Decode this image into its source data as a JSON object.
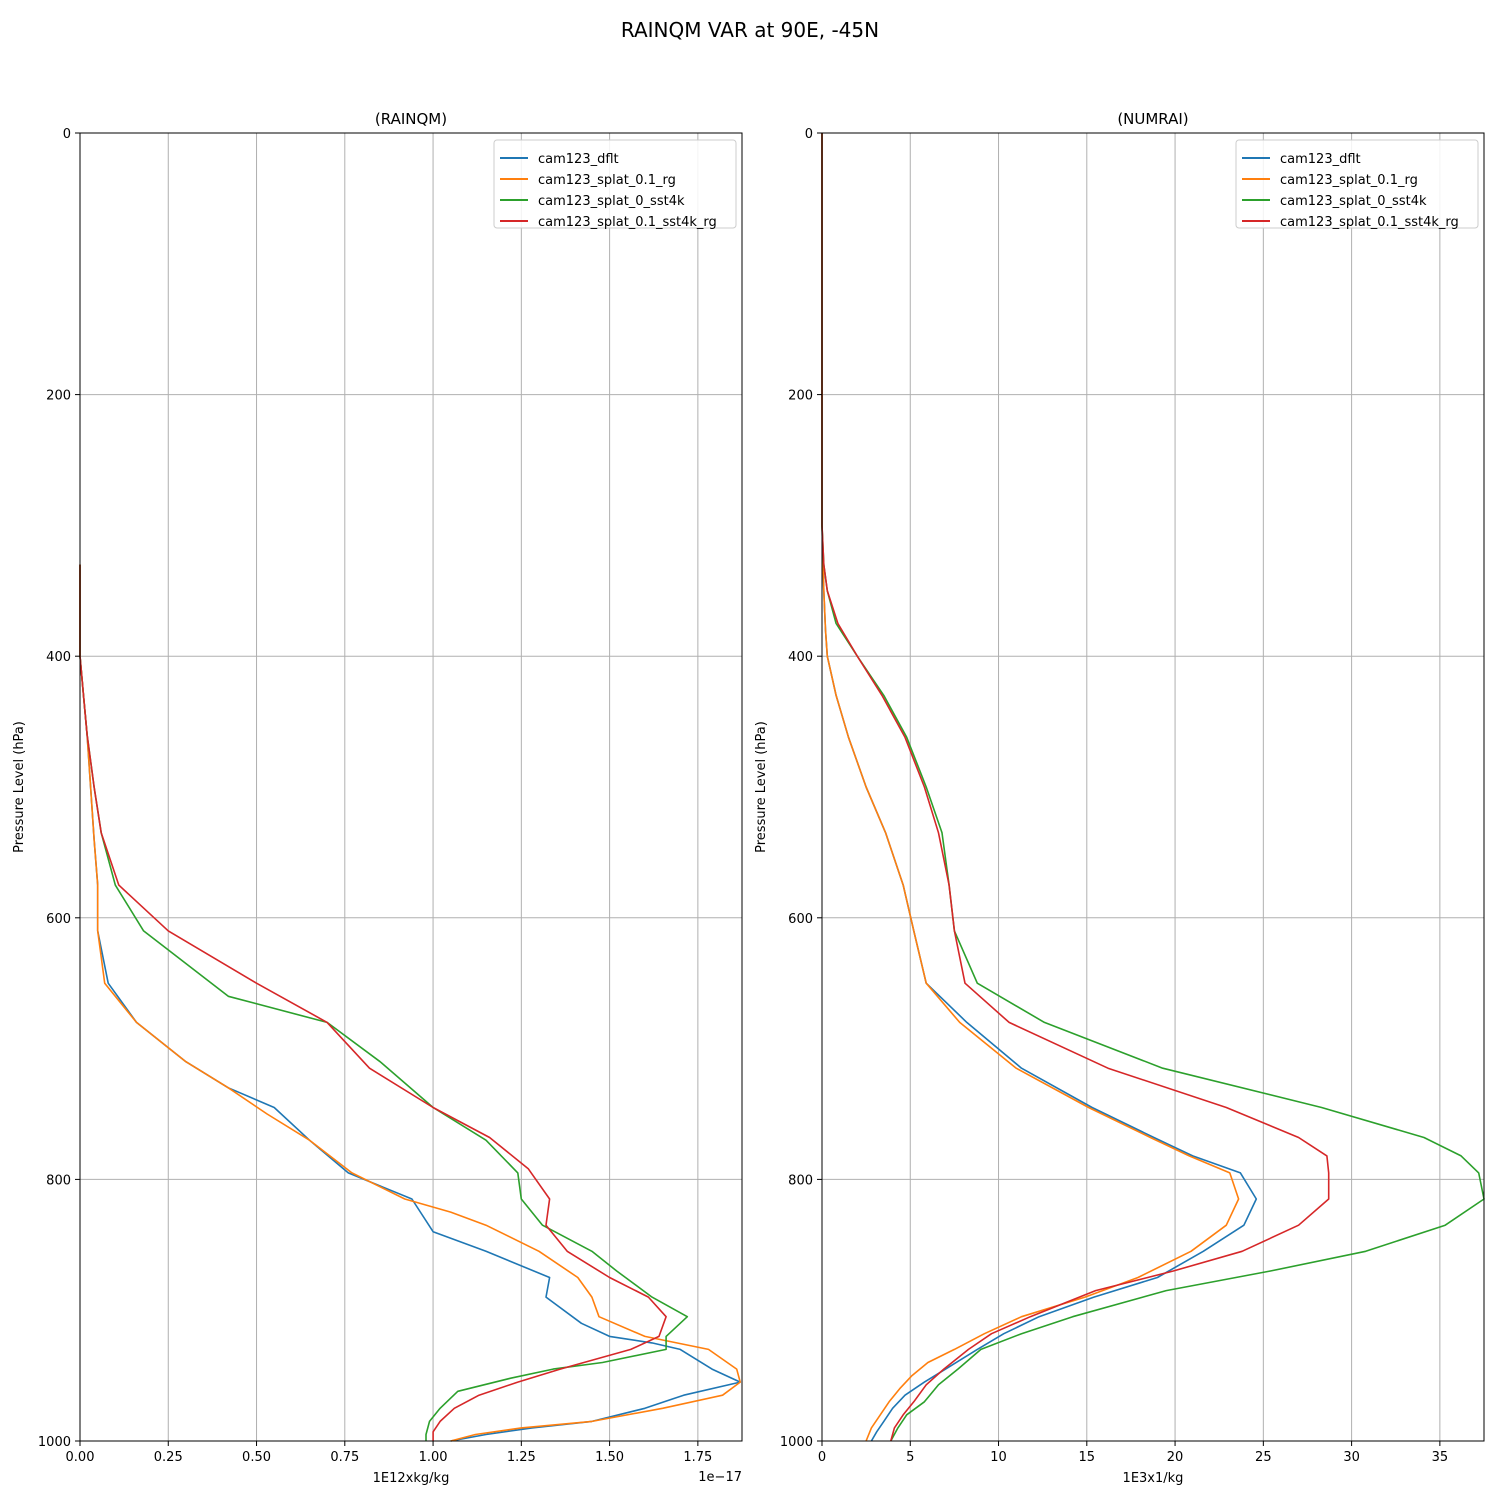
{
  "figure": {
    "title": "RAINQM VAR at 90E, -45N"
  },
  "chart_data": [
    {
      "type": "line",
      "title": "(RAINQM)",
      "xlabel": "1E12xkg/kg",
      "ylabel": "Pressure Level (hPa)",
      "offset_text": "1e−17",
      "xlim": [
        0,
        1.875
      ],
      "ylim": [
        1000,
        0
      ],
      "xticks": [
        0,
        0.25,
        0.5,
        0.75,
        1.0,
        1.25,
        1.5,
        1.75
      ],
      "xtick_labels": [
        "0.00",
        "0.25",
        "0.50",
        "0.75",
        "1.00",
        "1.25",
        "1.50",
        "1.75"
      ],
      "yticks": [
        0,
        200,
        400,
        600,
        800,
        1000
      ],
      "ytick_labels": [
        "0",
        "200",
        "400",
        "600",
        "800",
        "1000"
      ],
      "grid": true,
      "legend_position": "top-right",
      "series": [
        {
          "name": "cam123_dflt",
          "color": "#1f77b4",
          "points": [
            [
              0,
              330
            ],
            [
              0,
              400
            ],
            [
              0.01,
              430
            ],
            [
              0.02,
              460
            ],
            [
              0.03,
              500
            ],
            [
              0.04,
              540
            ],
            [
              0.05,
              575
            ],
            [
              0.05,
              610
            ],
            [
              0.08,
              650
            ],
            [
              0.16,
              680
            ],
            [
              0.3,
              710
            ],
            [
              0.42,
              730
            ],
            [
              0.55,
              745
            ],
            [
              0.65,
              770
            ],
            [
              0.76,
              795
            ],
            [
              0.94,
              815
            ],
            [
              1.0,
              840
            ],
            [
              1.15,
              855
            ],
            [
              1.33,
              875
            ],
            [
              1.32,
              890
            ],
            [
              1.42,
              910
            ],
            [
              1.5,
              920
            ],
            [
              1.62,
              925
            ],
            [
              1.7,
              930
            ],
            [
              1.79,
              945
            ],
            [
              1.87,
              955
            ],
            [
              1.71,
              965
            ],
            [
              1.6,
              975
            ],
            [
              1.45,
              985
            ],
            [
              1.28,
              990
            ],
            [
              1.15,
              995
            ],
            [
              1.05,
              1000
            ]
          ]
        },
        {
          "name": "cam123_splat_0.1_rg",
          "color": "#ff7f0e",
          "points": [
            [
              0,
              330
            ],
            [
              0,
              400
            ],
            [
              0.01,
              430
            ],
            [
              0.02,
              460
            ],
            [
              0.03,
              500
            ],
            [
              0.04,
              540
            ],
            [
              0.05,
              575
            ],
            [
              0.05,
              610
            ],
            [
              0.07,
              650
            ],
            [
              0.16,
              680
            ],
            [
              0.3,
              710
            ],
            [
              0.42,
              730
            ],
            [
              0.53,
              750
            ],
            [
              0.65,
              770
            ],
            [
              0.77,
              795
            ],
            [
              0.92,
              815
            ],
            [
              1.05,
              825
            ],
            [
              1.15,
              835
            ],
            [
              1.3,
              855
            ],
            [
              1.41,
              875
            ],
            [
              1.45,
              890
            ],
            [
              1.47,
              905
            ],
            [
              1.6,
              920
            ],
            [
              1.78,
              930
            ],
            [
              1.86,
              945
            ],
            [
              1.87,
              955
            ],
            [
              1.82,
              965
            ],
            [
              1.65,
              975
            ],
            [
              1.45,
              985
            ],
            [
              1.25,
              990
            ],
            [
              1.12,
              995
            ],
            [
              1.05,
              1000
            ]
          ]
        },
        {
          "name": "cam123_splat_0_sst4k",
          "color": "#2ca02c",
          "points": [
            [
              0,
              330
            ],
            [
              0,
              400
            ],
            [
              0.01,
              430
            ],
            [
              0.02,
              460
            ],
            [
              0.04,
              500
            ],
            [
              0.06,
              535
            ],
            [
              0.1,
              575
            ],
            [
              0.18,
              610
            ],
            [
              0.42,
              660
            ],
            [
              0.7,
              680
            ],
            [
              0.85,
              710
            ],
            [
              1.0,
              745
            ],
            [
              1.15,
              770
            ],
            [
              1.24,
              795
            ],
            [
              1.25,
              815
            ],
            [
              1.31,
              835
            ],
            [
              1.45,
              855
            ],
            [
              1.52,
              870
            ],
            [
              1.62,
              890
            ],
            [
              1.72,
              905
            ],
            [
              1.66,
              920
            ],
            [
              1.66,
              930
            ],
            [
              1.48,
              940
            ],
            [
              1.34,
              945
            ],
            [
              1.22,
              952
            ],
            [
              1.07,
              962
            ],
            [
              1.02,
              975
            ],
            [
              0.99,
              985
            ],
            [
              0.98,
              995
            ],
            [
              0.98,
              1000
            ]
          ]
        },
        {
          "name": "cam123_splat_0.1_sst4k_rg",
          "color": "#d62728",
          "points": [
            [
              0,
              330
            ],
            [
              0,
              400
            ],
            [
              0.01,
              430
            ],
            [
              0.02,
              460
            ],
            [
              0.04,
              500
            ],
            [
              0.06,
              535
            ],
            [
              0.11,
              575
            ],
            [
              0.25,
              610
            ],
            [
              0.5,
              650
            ],
            [
              0.7,
              680
            ],
            [
              0.82,
              715
            ],
            [
              1.0,
              745
            ],
            [
              1.16,
              768
            ],
            [
              1.27,
              792
            ],
            [
              1.33,
              815
            ],
            [
              1.32,
              835
            ],
            [
              1.38,
              855
            ],
            [
              1.5,
              875
            ],
            [
              1.61,
              890
            ],
            [
              1.66,
              905
            ],
            [
              1.64,
              920
            ],
            [
              1.56,
              930
            ],
            [
              1.36,
              945
            ],
            [
              1.24,
              955
            ],
            [
              1.13,
              965
            ],
            [
              1.06,
              975
            ],
            [
              1.02,
              985
            ],
            [
              1.0,
              993
            ],
            [
              1.0,
              1000
            ]
          ]
        }
      ]
    },
    {
      "type": "line",
      "title": "(NUMRAI)",
      "xlabel": "1E3x1/kg",
      "ylabel": "Pressure Level (hPa)",
      "xlim": [
        0,
        37.5
      ],
      "ylim": [
        1000,
        0
      ],
      "xticks": [
        0,
        5,
        10,
        15,
        20,
        25,
        30,
        35
      ],
      "xtick_labels": [
        "0",
        "5",
        "10",
        "15",
        "20",
        "25",
        "30",
        "35"
      ],
      "yticks": [
        0,
        200,
        400,
        600,
        800,
        1000
      ],
      "ytick_labels": [
        "0",
        "200",
        "400",
        "600",
        "800",
        "1000"
      ],
      "grid": true,
      "legend_position": "top-right",
      "series": [
        {
          "name": "cam123_dflt",
          "color": "#1f77b4",
          "points": [
            [
              0,
              0
            ],
            [
              0,
              300
            ],
            [
              0.1,
              350
            ],
            [
              0.2,
              380
            ],
            [
              0.3,
              400
            ],
            [
              0.8,
              430
            ],
            [
              1.5,
              462
            ],
            [
              2.5,
              500
            ],
            [
              3.6,
              535
            ],
            [
              4.6,
              575
            ],
            [
              5.2,
              610
            ],
            [
              5.9,
              650
            ],
            [
              8.2,
              680
            ],
            [
              11.3,
              715
            ],
            [
              15.3,
              745
            ],
            [
              18.8,
              768
            ],
            [
              21.0,
              782
            ],
            [
              23.7,
              795
            ],
            [
              24.6,
              815
            ],
            [
              23.9,
              835
            ],
            [
              21.6,
              855
            ],
            [
              19.0,
              875
            ],
            [
              15.4,
              890
            ],
            [
              12.3,
              905
            ],
            [
              10.3,
              918
            ],
            [
              8.8,
              930
            ],
            [
              7.0,
              945
            ],
            [
              5.8,
              955
            ],
            [
              4.7,
              965
            ],
            [
              4.0,
              975
            ],
            [
              3.5,
              985
            ],
            [
              3.1,
              993
            ],
            [
              2.8,
              1000
            ]
          ]
        },
        {
          "name": "cam123_splat_0.1_rg",
          "color": "#ff7f0e",
          "points": [
            [
              0,
              0
            ],
            [
              0,
              300
            ],
            [
              0.1,
              350
            ],
            [
              0.2,
              380
            ],
            [
              0.3,
              400
            ],
            [
              0.8,
              430
            ],
            [
              1.5,
              462
            ],
            [
              2.5,
              500
            ],
            [
              3.6,
              535
            ],
            [
              4.6,
              575
            ],
            [
              5.2,
              610
            ],
            [
              5.9,
              650
            ],
            [
              7.8,
              680
            ],
            [
              11.0,
              715
            ],
            [
              15.1,
              745
            ],
            [
              18.6,
              768
            ],
            [
              20.8,
              782
            ],
            [
              23.1,
              795
            ],
            [
              23.6,
              815
            ],
            [
              22.9,
              835
            ],
            [
              20.9,
              855
            ],
            [
              17.9,
              875
            ],
            [
              14.9,
              890
            ],
            [
              11.3,
              905
            ],
            [
              9.2,
              918
            ],
            [
              7.5,
              930
            ],
            [
              6.0,
              940
            ],
            [
              5.1,
              950
            ],
            [
              4.4,
              960
            ],
            [
              3.8,
              970
            ],
            [
              3.3,
              980
            ],
            [
              2.8,
              990
            ],
            [
              2.5,
              1000
            ]
          ]
        },
        {
          "name": "cam123_splat_0_sst4k",
          "color": "#2ca02c",
          "points": [
            [
              0,
              0
            ],
            [
              0,
              300
            ],
            [
              0.1,
              330
            ],
            [
              0.3,
              350
            ],
            [
              0.8,
              375
            ],
            [
              2.0,
              400
            ],
            [
              3.5,
              430
            ],
            [
              4.8,
              462
            ],
            [
              5.9,
              500
            ],
            [
              6.8,
              535
            ],
            [
              7.2,
              575
            ],
            [
              7.5,
              610
            ],
            [
              8.8,
              650
            ],
            [
              12.6,
              680
            ],
            [
              19.3,
              715
            ],
            [
              28.3,
              745
            ],
            [
              34.1,
              768
            ],
            [
              36.2,
              782
            ],
            [
              37.2,
              795
            ],
            [
              37.5,
              815
            ],
            [
              35.3,
              835
            ],
            [
              30.8,
              855
            ],
            [
              25.4,
              870
            ],
            [
              19.5,
              885
            ],
            [
              14.2,
              905
            ],
            [
              11.3,
              918
            ],
            [
              9.0,
              930
            ],
            [
              7.7,
              945
            ],
            [
              6.6,
              957
            ],
            [
              5.8,
              970
            ],
            [
              4.8,
              980
            ],
            [
              4.3,
              990
            ],
            [
              3.9,
              1000
            ]
          ]
        },
        {
          "name": "cam123_splat_0.1_sst4k_rg",
          "color": "#d62728",
          "points": [
            [
              0,
              0
            ],
            [
              0,
              300
            ],
            [
              0.1,
              330
            ],
            [
              0.3,
              350
            ],
            [
              0.9,
              375
            ],
            [
              2.0,
              400
            ],
            [
              3.4,
              430
            ],
            [
              4.7,
              462
            ],
            [
              5.8,
              500
            ],
            [
              6.6,
              535
            ],
            [
              7.2,
              575
            ],
            [
              7.5,
              610
            ],
            [
              8.1,
              650
            ],
            [
              10.6,
              680
            ],
            [
              16.2,
              715
            ],
            [
              22.9,
              745
            ],
            [
              27.0,
              768
            ],
            [
              28.6,
              782
            ],
            [
              28.7,
              795
            ],
            [
              28.7,
              815
            ],
            [
              27.0,
              835
            ],
            [
              23.8,
              855
            ],
            [
              19.9,
              870
            ],
            [
              15.5,
              885
            ],
            [
              11.8,
              905
            ],
            [
              9.6,
              918
            ],
            [
              8.3,
              930
            ],
            [
              6.9,
              945
            ],
            [
              5.9,
              957
            ],
            [
              5.2,
              970
            ],
            [
              4.6,
              980
            ],
            [
              4.1,
              990
            ],
            [
              3.9,
              1000
            ]
          ]
        }
      ]
    }
  ]
}
